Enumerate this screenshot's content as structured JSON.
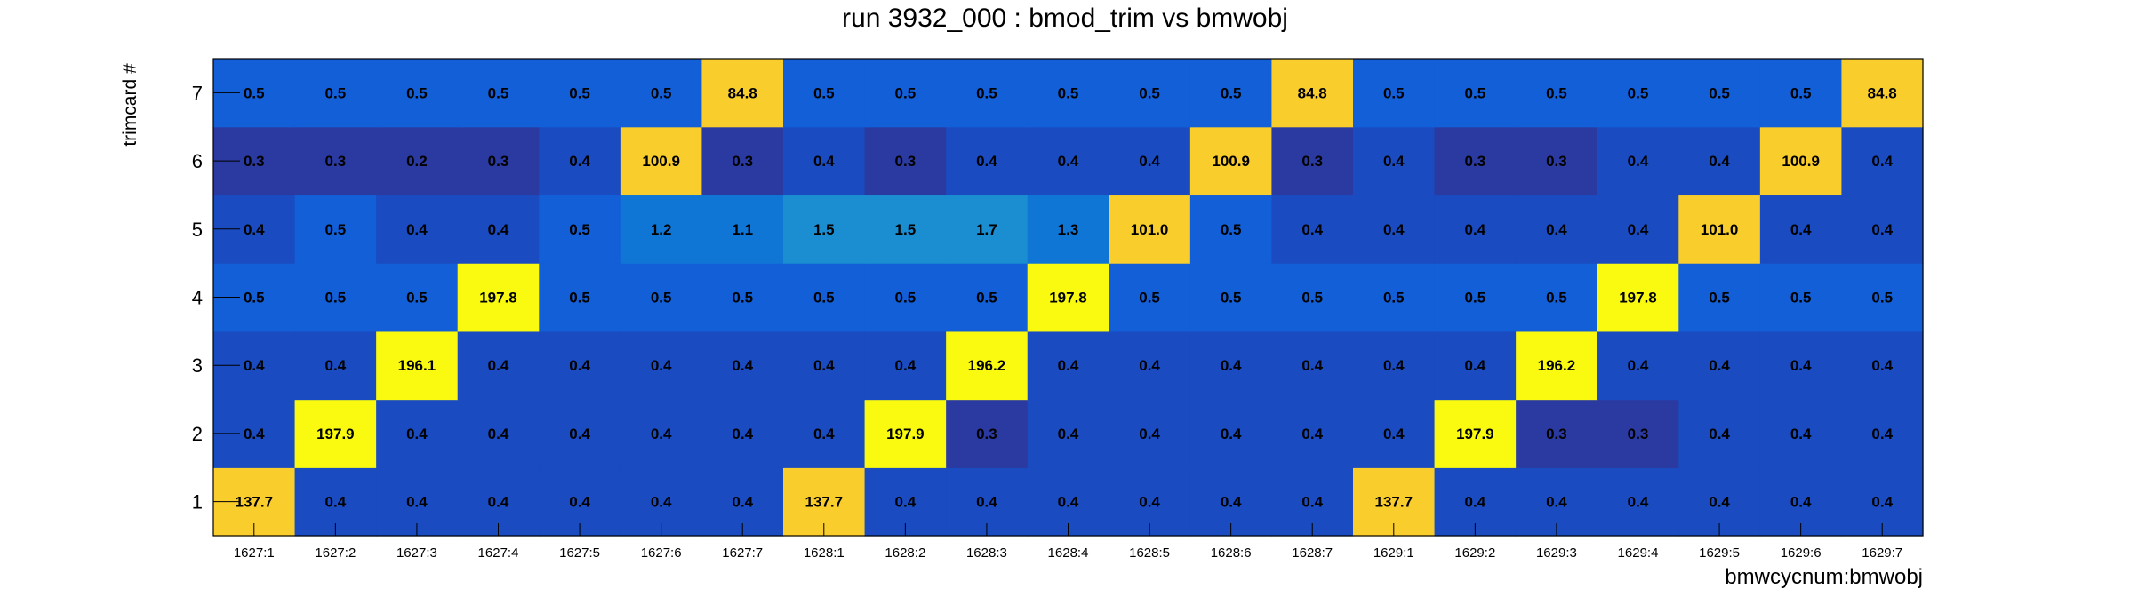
{
  "chart_data": {
    "type": "heatmap",
    "title": "run 3932_000 : bmod_trim vs bmwobj",
    "xlabel": "bmwcycnum:bmwobj",
    "ylabel": "trimcard #",
    "x_categories": [
      "1627:1",
      "1627:2",
      "1627:3",
      "1627:4",
      "1627:5",
      "1627:6",
      "1627:7",
      "1628:1",
      "1628:2",
      "1628:3",
      "1628:4",
      "1628:5",
      "1628:6",
      "1628:7",
      "1629:1",
      "1629:2",
      "1629:3",
      "1629:4",
      "1629:5",
      "1629:6",
      "1629:7"
    ],
    "y_categories": [
      "1",
      "2",
      "3",
      "4",
      "5",
      "6",
      "7"
    ],
    "values": [
      [
        137.7,
        0.4,
        0.4,
        0.4,
        0.4,
        0.4,
        0.4,
        137.7,
        0.4,
        0.4,
        0.4,
        0.4,
        0.4,
        0.4,
        137.7,
        0.4,
        0.4,
        0.4,
        0.4,
        0.4,
        0.4
      ],
      [
        0.4,
        197.9,
        0.4,
        0.4,
        0.4,
        0.4,
        0.4,
        0.4,
        197.9,
        0.3,
        0.4,
        0.4,
        0.4,
        0.4,
        0.4,
        197.9,
        0.3,
        0.3,
        0.4,
        0.4,
        0.4
      ],
      [
        0.4,
        0.4,
        196.1,
        0.4,
        0.4,
        0.4,
        0.4,
        0.4,
        0.4,
        196.2,
        0.4,
        0.4,
        0.4,
        0.4,
        0.4,
        0.4,
        196.2,
        0.4,
        0.4,
        0.4,
        0.4
      ],
      [
        0.5,
        0.5,
        0.5,
        197.8,
        0.5,
        0.5,
        0.5,
        0.5,
        0.5,
        0.5,
        197.8,
        0.5,
        0.5,
        0.5,
        0.5,
        0.5,
        0.5,
        197.8,
        0.5,
        0.5,
        0.5
      ],
      [
        0.4,
        0.5,
        0.4,
        0.4,
        0.5,
        1.2,
        1.1,
        1.5,
        1.5,
        1.7,
        1.3,
        101.0,
        0.5,
        0.4,
        0.4,
        0.4,
        0.4,
        0.4,
        101.0,
        0.4,
        0.4
      ],
      [
        0.3,
        0.3,
        0.2,
        0.3,
        0.4,
        100.9,
        0.3,
        0.4,
        0.3,
        0.4,
        0.4,
        0.4,
        100.9,
        0.3,
        0.4,
        0.3,
        0.3,
        0.4,
        0.4,
        100.9,
        0.4
      ],
      [
        0.5,
        0.5,
        0.5,
        0.5,
        0.5,
        0.5,
        84.8,
        0.5,
        0.5,
        0.5,
        0.5,
        0.5,
        0.5,
        84.8,
        0.5,
        0.5,
        0.5,
        0.5,
        0.5,
        0.5,
        84.8
      ]
    ],
    "colors": {
      "dark": "#2b3aa0",
      "low": "#1a4bc0",
      "mid_low": "#135fd8",
      "mid": "#1076d6",
      "mid_high": "#1a8ed0",
      "high_orange": "#f9cd2c",
      "high_yellow": "#f9fa10"
    }
  }
}
